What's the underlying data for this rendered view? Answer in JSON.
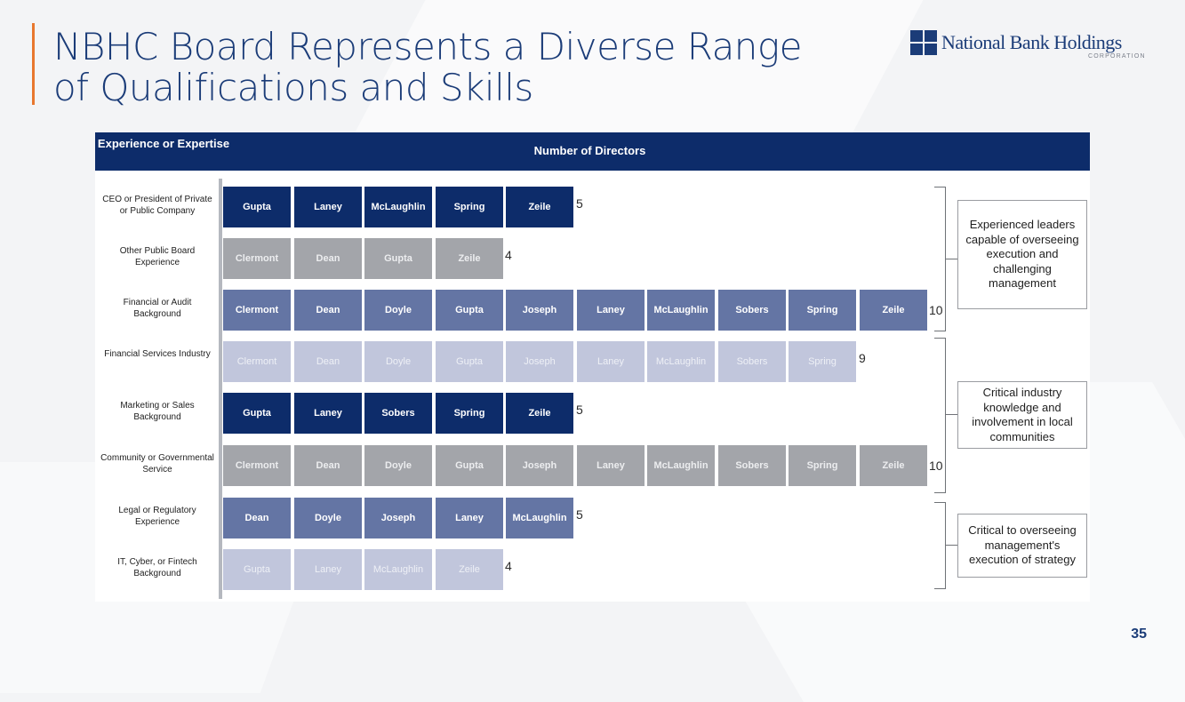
{
  "slide": {
    "title_line1": "NBHC Board Represents a Diverse Range",
    "title_line2": "of Qualifications and Skills",
    "page_number": "35"
  },
  "logo": {
    "name": "National Bank Holdings",
    "subtitle": "CORPORATION"
  },
  "table": {
    "header_left": "Experience or Expertise",
    "header_main": "Number of Directors"
  },
  "rows": [
    {
      "label": "CEO or President of Private or Public Company",
      "directors": [
        "Gupta",
        "Laney",
        "McLaughlin",
        "Spring",
        "Zeile"
      ],
      "count": "5",
      "tone": "t1"
    },
    {
      "label": "Other Public Board Experience",
      "directors": [
        "Clermont",
        "Dean",
        "Gupta",
        "Zeile"
      ],
      "count": "4",
      "tone": "t2"
    },
    {
      "label": "Financial or Audit Background",
      "directors": [
        "Clermont",
        "Dean",
        "Doyle",
        "Gupta",
        "Joseph",
        "Laney",
        "McLaughlin",
        "Sobers",
        "Spring",
        "Zeile"
      ],
      "count": "10",
      "tone": "t3"
    },
    {
      "label": "Financial Services Industry",
      "directors": [
        "Clermont",
        "Dean",
        "Doyle",
        "Gupta",
        "Joseph",
        "Laney",
        "McLaughlin",
        "Sobers",
        "Spring"
      ],
      "count": "9",
      "tone": "t4"
    },
    {
      "label": "Marketing or Sales Background",
      "directors": [
        "Gupta",
        "Laney",
        "Sobers",
        "Spring",
        "Zeile"
      ],
      "count": "5",
      "tone": "t1"
    },
    {
      "label": "Community or Governmental Service",
      "directors": [
        "Clermont",
        "Dean",
        "Doyle",
        "Gupta",
        "Joseph",
        "Laney",
        "McLaughlin",
        "Sobers",
        "Spring",
        "Zeile"
      ],
      "count": "10",
      "tone": "t2"
    },
    {
      "label": "Legal or Regulatory Experience",
      "directors": [
        "Dean",
        "Doyle",
        "Joseph",
        "Laney",
        "McLaughlin"
      ],
      "count": "5",
      "tone": "t3"
    },
    {
      "label": "IT, Cyber, or Fintech Background",
      "directors": [
        "Gupta",
        "Laney",
        "McLaughlin",
        "Zeile"
      ],
      "count": "4",
      "tone": "t4"
    }
  ],
  "callouts": [
    {
      "text": "Experienced leaders capable of overseeing execution and challenging management"
    },
    {
      "text": "Critical industry knowledge and involvement in local communities"
    },
    {
      "text": "Critical to overseeing management's execution of strategy"
    }
  ],
  "colors": {
    "navy": "#0d2c6a",
    "gray": "#a3a5aa",
    "slate_blue": "#6475a4",
    "light_lavender": "#c1c6dc",
    "accent_orange": "#e8772e",
    "title_blue": "#1b3c78"
  }
}
